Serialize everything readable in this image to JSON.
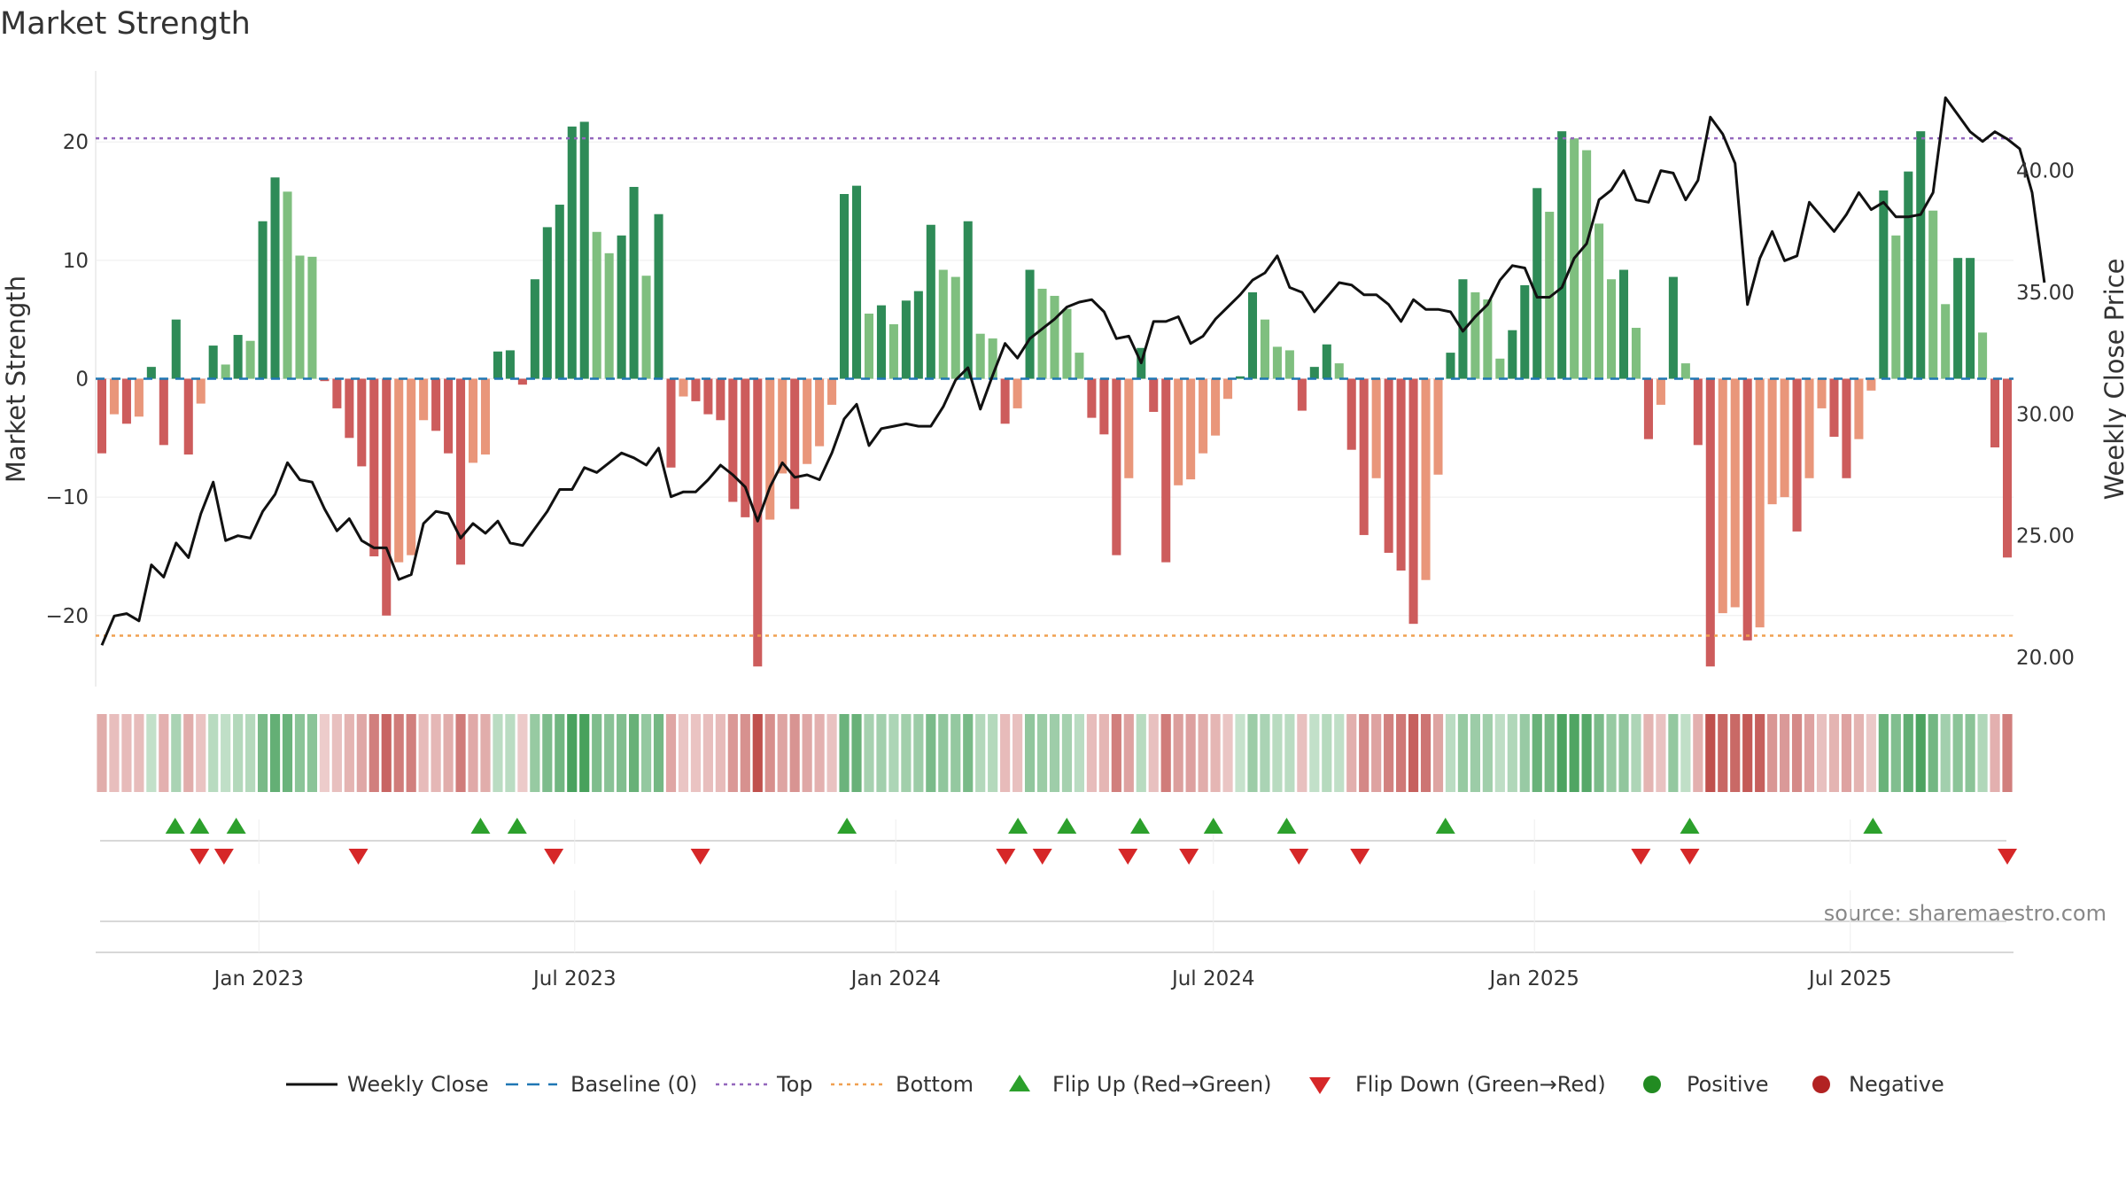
{
  "chart_data": {
    "type": "bar",
    "title": "Market Strength",
    "ylabel": "Market Strength",
    "y2label": "Weekly Close Price",
    "source": "source: sharemaestro.com",
    "ylim": [
      -26,
      26
    ],
    "y2lim": [
      18.8,
      44.1
    ],
    "yticks": [
      20,
      10,
      0,
      -10,
      -20
    ],
    "ytick_labels": [
      "20",
      "10",
      "0",
      "−10",
      "−20"
    ],
    "y2ticks": [
      40,
      35,
      30,
      25,
      20
    ],
    "y2tick_labels": [
      "40.00",
      "35.00",
      "30.00",
      "25.00",
      "20.00"
    ],
    "top_level": 20.3,
    "bottom_level": -21.7,
    "x_start": "2022-10-03",
    "x_end": "2025-09-29",
    "xticks": [
      {
        "date": "2023-01-01",
        "label": "Jan 2023"
      },
      {
        "date": "2023-07-01",
        "label": "Jul 2023"
      },
      {
        "date": "2024-01-01",
        "label": "Jan 2024"
      },
      {
        "date": "2024-07-01",
        "label": "Jul 2024"
      },
      {
        "date": "2025-01-01",
        "label": "Jan 2025"
      },
      {
        "date": "2025-07-01",
        "label": "Jul 2025"
      }
    ],
    "strength": [
      -6.3,
      -3.0,
      -3.8,
      -3.2,
      1.0,
      -5.6,
      5.0,
      -6.4,
      -2.1,
      2.8,
      1.2,
      3.7,
      3.2,
      13.3,
      17.0,
      15.8,
      10.4,
      10.3,
      -0.2,
      -2.5,
      -5.0,
      -7.4,
      -15.0,
      -20.0,
      -15.5,
      -14.9,
      -3.5,
      -4.4,
      -6.3,
      -15.7,
      -7.1,
      -6.4,
      2.3,
      2.4,
      -0.5,
      8.4,
      12.8,
      14.7,
      21.3,
      21.7,
      12.4,
      10.6,
      12.1,
      16.2,
      8.7,
      13.9,
      -7.5,
      -1.5,
      -1.9,
      -3.0,
      -3.5,
      -10.4,
      -11.7,
      -24.3,
      -11.9,
      -8.0,
      -11.0,
      -7.2,
      -5.7,
      -2.2,
      15.6,
      16.3,
      5.5,
      6.2,
      4.6,
      6.6,
      7.4,
      13.0,
      9.2,
      8.6,
      13.3,
      3.8,
      3.4,
      -3.8,
      -2.5,
      9.2,
      7.6,
      7.0,
      5.9,
      2.2,
      -3.3,
      -4.7,
      -14.9,
      -8.4,
      2.6,
      -2.8,
      -15.5,
      -9.0,
      -8.5,
      -6.3,
      -4.8,
      -1.7,
      0.2,
      7.3,
      5.0,
      2.7,
      2.4,
      -2.7,
      1.0,
      2.9,
      1.3,
      -6.0,
      -13.2,
      -8.4,
      -14.7,
      -16.2,
      -20.7,
      -17.0,
      -8.1,
      2.2,
      8.4,
      7.3,
      6.7,
      1.7,
      4.1,
      7.9,
      16.1,
      14.1,
      20.9,
      20.3,
      19.3,
      13.1,
      8.4,
      9.2,
      4.3,
      -5.1,
      -2.2,
      8.6,
      1.3,
      -5.6,
      -24.3,
      -19.8,
      -19.3,
      -22.1,
      -21.0,
      -10.6,
      -10.0,
      -12.9,
      -8.4,
      -2.5,
      -4.9,
      -8.4,
      -5.1,
      -1.0,
      15.9,
      12.1,
      17.5,
      20.9,
      14.2,
      6.3,
      10.2,
      10.2,
      3.9,
      -5.8,
      -15.1
    ],
    "close": [
      20.5,
      21.7,
      21.8,
      21.5,
      23.8,
      23.3,
      24.7,
      24.1,
      25.9,
      27.2,
      24.8,
      25.0,
      24.9,
      26.0,
      26.7,
      28.0,
      27.3,
      27.2,
      26.1,
      25.2,
      25.7,
      24.8,
      24.5,
      24.5,
      23.2,
      23.4,
      25.5,
      26.0,
      25.9,
      24.9,
      25.5,
      25.1,
      25.6,
      24.7,
      24.6,
      25.3,
      26.0,
      26.9,
      26.9,
      27.8,
      27.6,
      28.0,
      28.4,
      28.2,
      27.9,
      28.6,
      26.6,
      26.8,
      26.8,
      27.3,
      27.9,
      27.5,
      27.0,
      25.6,
      27.0,
      28.0,
      27.4,
      27.5,
      27.3,
      28.4,
      29.8,
      30.4,
      28.7,
      29.4,
      29.5,
      29.6,
      29.5,
      29.5,
      30.3,
      31.4,
      31.9,
      30.2,
      31.6,
      32.9,
      32.3,
      33.1,
      33.5,
      33.9,
      34.4,
      34.6,
      34.7,
      34.2,
      33.1,
      33.2,
      32.1,
      33.8,
      33.8,
      34.0,
      32.9,
      33.2,
      33.9,
      34.4,
      34.9,
      35.5,
      35.8,
      36.5,
      35.2,
      35.0,
      34.2,
      34.8,
      35.4,
      35.3,
      34.9,
      34.9,
      34.5,
      33.8,
      34.7,
      34.3,
      34.3,
      34.2,
      33.4,
      34.0,
      34.5,
      35.5,
      36.1,
      36.0,
      34.8,
      34.8,
      35.2,
      36.4,
      37.0,
      38.8,
      39.2,
      40.0,
      38.8,
      38.7,
      40.0,
      39.9,
      38.8,
      39.6,
      42.2,
      41.5,
      40.3,
      34.5,
      36.4,
      37.5,
      36.3,
      36.5,
      38.7,
      38.1,
      37.5,
      38.2,
      39.1,
      38.4,
      38.7,
      38.1,
      38.1,
      38.2,
      39.1,
      43.0,
      42.3,
      41.6,
      41.2,
      41.6,
      41.3,
      40.9,
      39.1,
      35.4
    ],
    "flips_up": [
      "2022-11-14",
      "2022-11-28",
      "2022-12-19",
      "2023-05-08",
      "2023-05-29",
      "2023-12-04",
      "2024-03-11",
      "2024-04-08",
      "2024-05-20",
      "2024-07-01",
      "2024-08-12",
      "2024-11-11",
      "2025-03-31",
      "2025-07-14"
    ],
    "flips_down": [
      "2022-11-28",
      "2022-12-12",
      "2023-02-27",
      "2023-06-19",
      "2023-09-11",
      "2024-03-04",
      "2024-03-25",
      "2024-05-13",
      "2024-06-17",
      "2024-08-19",
      "2024-09-23",
      "2025-03-03",
      "2025-03-31",
      "2025-09-29"
    ],
    "colors": {
      "positive_bar": "#2e8b57",
      "positive_bar_light": "#7fbf7f",
      "negative_bar": "#cd5c5c",
      "negative_bar_light": "#e9967a",
      "close_line": "#111111",
      "baseline": "#1f77b4",
      "top": "#9467bd",
      "bottom": "#f0a050",
      "flip_up": "#2ca02c",
      "flip_down": "#d62728",
      "positive_dot": "#228b22",
      "negative_dot": "#b22222"
    },
    "legend_placement": "bottom-center",
    "legend": [
      {
        "label": "Weekly Close",
        "marker": "line"
      },
      {
        "label": "Baseline (0)",
        "marker": "dash"
      },
      {
        "label": "Top",
        "marker": "dot-purple"
      },
      {
        "label": "Bottom",
        "marker": "dot-orange"
      },
      {
        "label": "Flip Up (Red→Green)",
        "marker": "triangle-up"
      },
      {
        "label": "Flip Down (Green→Red)",
        "marker": "triangle-down"
      },
      {
        "label": "Positive",
        "marker": "circle-green"
      },
      {
        "label": "Negative",
        "marker": "circle-red"
      }
    ]
  }
}
